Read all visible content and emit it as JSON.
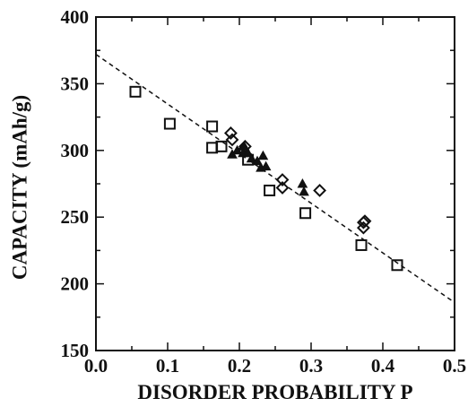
{
  "chart_data": {
    "type": "scatter",
    "title": "",
    "xlabel": "DISORDER PROBABILITY P",
    "ylabel": "CAPACITY (mAh/g)",
    "xlim": [
      0.0,
      0.5
    ],
    "ylim": [
      150,
      400
    ],
    "xticks": [
      0.0,
      0.1,
      0.2,
      0.3,
      0.4,
      0.5
    ],
    "xtick_labels": [
      "0.0",
      "0.1",
      "0.2",
      "0.3",
      "0.4",
      "0.5"
    ],
    "yticks": [
      150,
      200,
      250,
      300,
      350,
      400
    ],
    "ytick_labels": [
      "150",
      "200",
      "250",
      "300",
      "350",
      "400"
    ],
    "grid": false,
    "legend": "none",
    "fit_line": {
      "style": "dashed",
      "x": [
        0.0,
        0.5
      ],
      "y": [
        372,
        186
      ]
    },
    "series": [
      {
        "marker": "square",
        "points": [
          [
            0.055,
            344
          ],
          [
            0.103,
            320
          ],
          [
            0.162,
            318
          ],
          [
            0.162,
            302
          ],
          [
            0.175,
            303
          ],
          [
            0.212,
            293
          ],
          [
            0.242,
            270
          ],
          [
            0.292,
            253
          ],
          [
            0.37,
            229
          ],
          [
            0.42,
            214
          ]
        ]
      },
      {
        "marker": "diamond",
        "points": [
          [
            0.188,
            313
          ],
          [
            0.19,
            308
          ],
          [
            0.205,
            300
          ],
          [
            0.208,
            303
          ],
          [
            0.26,
            278
          ],
          [
            0.26,
            272
          ],
          [
            0.312,
            270
          ],
          [
            0.373,
            246
          ],
          [
            0.375,
            247
          ],
          [
            0.373,
            242
          ]
        ]
      },
      {
        "marker": "triangle",
        "points": [
          [
            0.19,
            297
          ],
          [
            0.197,
            300
          ],
          [
            0.205,
            298
          ],
          [
            0.207,
            303
          ],
          [
            0.212,
            298
          ],
          [
            0.217,
            294
          ],
          [
            0.225,
            292
          ],
          [
            0.23,
            287
          ],
          [
            0.233,
            296
          ],
          [
            0.237,
            288
          ],
          [
            0.288,
            275
          ],
          [
            0.29,
            269
          ]
        ]
      }
    ]
  }
}
